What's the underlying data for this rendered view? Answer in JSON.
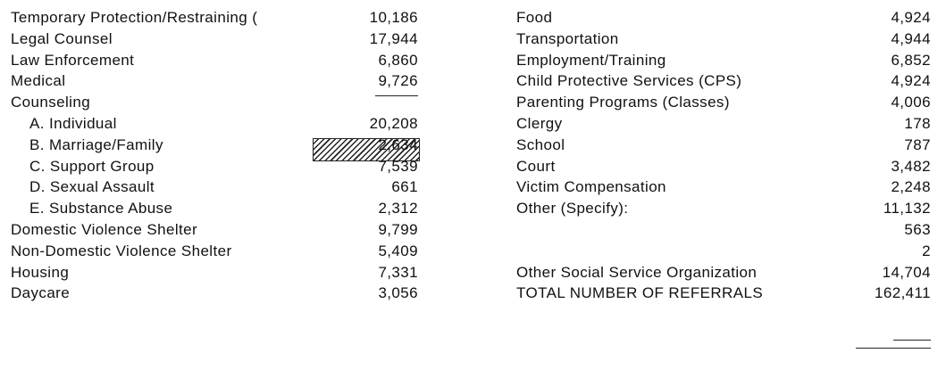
{
  "left": [
    {
      "label": "Temporary Protection/Restraining (",
      "value": "10,186"
    },
    {
      "label": "Legal Counsel",
      "value": "17,944"
    },
    {
      "label": "Law Enforcement",
      "value": "6,860"
    },
    {
      "label": "Medical",
      "value": "9,726"
    },
    {
      "label": "Counseling",
      "items": [
        {
          "label": "A.  Individual",
          "value": "20,208"
        },
        {
          "label": "B.  Marriage/Family",
          "value": "2,634"
        },
        {
          "label": "C.  Support Group",
          "value": "7,539"
        },
        {
          "label": "D.  Sexual Assault",
          "value": "661"
        },
        {
          "label": "E.  Substance Abuse",
          "value": "2,312"
        }
      ]
    },
    {
      "label": "Domestic Violence Shelter",
      "value": "9,799"
    },
    {
      "label": "Non-Domestic Violence Shelter",
      "value": "5,409"
    },
    {
      "label": "Housing",
      "value": "7,331"
    },
    {
      "label": "Daycare",
      "value": "3,056"
    }
  ],
  "right": [
    {
      "label": "Food",
      "value": "4,924"
    },
    {
      "label": "Transportation",
      "value": "4,944"
    },
    {
      "label": "Employment/Training",
      "value": "6,852"
    },
    {
      "label": "Child Protective Services (CPS)",
      "value": "4,924"
    },
    {
      "label": "Parenting Programs (Classes)",
      "value": "4,006"
    },
    {
      "label": "Clergy",
      "value": "178"
    },
    {
      "label": "School",
      "value": "787"
    },
    {
      "label": "Court",
      "value": "3,482"
    },
    {
      "label": "Victim Compensation",
      "value": "2,248"
    },
    {
      "label": "Other (Specify):",
      "value": "11,132"
    },
    {
      "value": "563"
    },
    {
      "value": "2"
    },
    {
      "label": "Other Social Service Organization",
      "value": "14,704"
    }
  ],
  "total": {
    "label": "TOTAL NUMBER OF REFERRALS",
    "value": "162,411"
  }
}
